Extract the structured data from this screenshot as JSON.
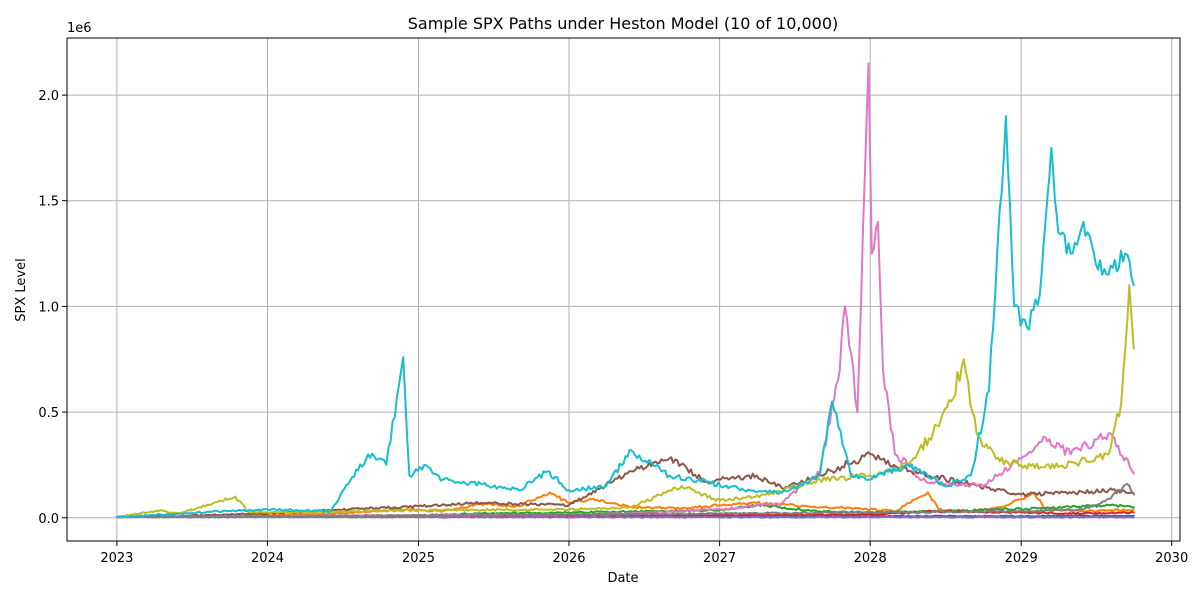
{
  "chart_data": {
    "type": "line",
    "title": "Sample SPX Paths under Heston Model (10 of 10,000)",
    "xlabel": "Date",
    "ylabel": "SPX Level",
    "offset_text": "1e6",
    "x_domain": [
      "2022-09-02",
      "2030-01-21"
    ],
    "ylim": [
      -110000,
      2270000
    ],
    "x_ticks": [
      {
        "label": "2023",
        "date": "2023-01-01"
      },
      {
        "label": "2024",
        "date": "2024-01-01"
      },
      {
        "label": "2025",
        "date": "2025-01-01"
      },
      {
        "label": "2026",
        "date": "2026-01-01"
      },
      {
        "label": "2027",
        "date": "2027-01-01"
      },
      {
        "label": "2028",
        "date": "2028-01-01"
      },
      {
        "label": "2029",
        "date": "2029-01-01"
      },
      {
        "label": "2030",
        "date": "2030-01-01"
      }
    ],
    "y_ticks": [
      {
        "label": "0.0",
        "value": 0
      },
      {
        "label": "0.5",
        "value": 500000
      },
      {
        "label": "1.0",
        "value": 1000000
      },
      {
        "label": "1.5",
        "value": 1500000
      },
      {
        "label": "2.0",
        "value": 2000000
      }
    ],
    "grid": true,
    "series": [
      {
        "color": "#1f77b4",
        "x": [
          "2023-01-01",
          "2024-01-01",
          "2025-01-01",
          "2026-01-01",
          "2027-01-01",
          "2028-01-01",
          "2028-06-01",
          "2029-01-01",
          "2029-06-01",
          "2029-10-01"
        ],
        "y": [
          3800,
          4200,
          5000,
          5600,
          6500,
          7200,
          7800,
          8400,
          9000,
          9500
        ]
      },
      {
        "color": "#ff7f0e",
        "x": [
          "2023-01-01",
          "2023-06-01",
          "2024-01-01",
          "2024-06-01",
          "2024-12-01",
          "2025-03-01",
          "2025-06-01",
          "2025-09-01",
          "2025-11-15",
          "2026-01-01",
          "2026-03-01",
          "2026-06-01",
          "2026-10-01",
          "2027-01-01",
          "2027-04-01",
          "2027-09-01",
          "2027-12-01",
          "2028-03-01",
          "2028-05-20",
          "2028-06-15",
          "2028-09-01",
          "2028-12-01",
          "2029-02-01",
          "2029-03-01",
          "2029-06-01",
          "2029-10-01"
        ],
        "y": [
          3800,
          6000,
          12000,
          18000,
          40000,
          30000,
          65000,
          55000,
          120000,
          70000,
          90000,
          50000,
          45000,
          60000,
          70000,
          50000,
          45000,
          30000,
          120000,
          40000,
          30000,
          60000,
          120000,
          40000,
          30000,
          40000
        ]
      },
      {
        "color": "#2ca02c",
        "x": [
          "2023-01-01",
          "2023-06-01",
          "2024-01-01",
          "2024-06-01",
          "2025-01-01",
          "2025-06-01",
          "2026-01-01",
          "2026-06-01",
          "2027-01-01",
          "2027-04-01",
          "2027-09-01",
          "2028-01-01",
          "2028-06-01",
          "2028-12-01",
          "2029-03-01",
          "2029-08-01",
          "2029-10-01"
        ],
        "y": [
          3800,
          4500,
          6000,
          8000,
          12000,
          20000,
          25000,
          30000,
          35000,
          60000,
          30000,
          25000,
          30000,
          40000,
          45000,
          60000,
          50000
        ]
      },
      {
        "color": "#d62728",
        "x": [
          "2023-01-01",
          "2024-01-01",
          "2025-01-01",
          "2026-01-01",
          "2027-01-01",
          "2028-01-01",
          "2028-06-01",
          "2029-01-01",
          "2029-06-01",
          "2029-10-01"
        ],
        "y": [
          3800,
          5000,
          7000,
          9000,
          12000,
          15000,
          30000,
          25000,
          20000,
          25000
        ]
      },
      {
        "color": "#9467bd",
        "x": [
          "2023-01-01",
          "2024-01-01",
          "2025-01-01",
          "2026-01-01",
          "2027-01-01",
          "2028-01-01",
          "2029-01-01",
          "2029-10-01"
        ],
        "y": [
          3800,
          3400,
          3000,
          2800,
          2500,
          2300,
          2100,
          2000
        ]
      },
      {
        "color": "#8c564b",
        "x": [
          "2023-01-01",
          "2023-06-01",
          "2024-01-01",
          "2024-06-01",
          "2025-01-01",
          "2025-06-01",
          "2026-01-01",
          "2026-06-01",
          "2026-09-01",
          "2026-12-01",
          "2027-04-01",
          "2027-06-01",
          "2027-09-01",
          "2028-01-01",
          "2028-04-01",
          "2028-09-01",
          "2029-01-01",
          "2029-06-01",
          "2029-08-01",
          "2029-10-01"
        ],
        "y": [
          3800,
          8000,
          20000,
          35000,
          55000,
          70000,
          60000,
          220000,
          280000,
          170000,
          200000,
          140000,
          200000,
          300000,
          220000,
          160000,
          110000,
          120000,
          130000,
          115000
        ]
      },
      {
        "color": "#e377c2",
        "x": [
          "2023-01-01",
          "2024-01-01",
          "2025-01-01",
          "2026-01-01",
          "2026-06-01",
          "2027-01-01",
          "2027-06-01",
          "2027-09-01",
          "2027-10-15",
          "2027-11-01",
          "2027-12-01",
          "2027-12-28",
          "2028-01-05",
          "2028-01-20",
          "2028-02-01",
          "2028-02-15",
          "2028-03-01",
          "2028-04-01",
          "2028-05-01",
          "2028-07-01",
          "2028-10-01",
          "2029-01-01",
          "2029-03-01",
          "2029-05-01",
          "2029-08-01",
          "2029-10-01"
        ],
        "y": [
          3800,
          8000,
          12000,
          15000,
          20000,
          40000,
          70000,
          220000,
          650000,
          1000000,
          500000,
          2150000,
          1250000,
          1400000,
          700000,
          520000,
          300000,
          250000,
          180000,
          160000,
          150000,
          280000,
          380000,
          300000,
          400000,
          210000
        ]
      },
      {
        "color": "#7f7f7f",
        "x": [
          "2023-01-01",
          "2024-01-01",
          "2025-01-01",
          "2026-01-01",
          "2027-01-01",
          "2028-01-01",
          "2029-01-01",
          "2029-06-01",
          "2029-08-01",
          "2029-09-15",
          "2029-10-01"
        ],
        "y": [
          3800,
          6000,
          10000,
          15000,
          20000,
          25000,
          30000,
          40000,
          90000,
          160000,
          110000
        ]
      },
      {
        "color": "#bcbd22",
        "x": [
          "2023-01-01",
          "2023-04-15",
          "2023-06-01",
          "2023-10-15",
          "2023-11-15",
          "2024-01-01",
          "2025-01-01",
          "2026-01-01",
          "2026-06-01",
          "2026-10-01",
          "2027-01-01",
          "2027-05-01",
          "2027-09-01",
          "2028-01-01",
          "2028-04-01",
          "2028-06-01",
          "2028-07-15",
          "2028-08-15",
          "2028-09-15",
          "2028-11-01",
          "2029-01-01",
          "2029-04-01",
          "2029-08-01",
          "2029-09-01",
          "2029-09-20",
          "2029-10-01"
        ],
        "y": [
          3800,
          35000,
          20000,
          100000,
          30000,
          25000,
          35000,
          40000,
          50000,
          150000,
          80000,
          110000,
          180000,
          200000,
          250000,
          400000,
          550000,
          750000,
          400000,
          280000,
          250000,
          240000,
          300000,
          550000,
          1100000,
          800000
        ]
      },
      {
        "color": "#17becf",
        "x": [
          "2023-01-01",
          "2023-06-01",
          "2024-01-01",
          "2024-06-01",
          "2024-09-01",
          "2024-10-15",
          "2024-11-25",
          "2024-12-10",
          "2025-01-15",
          "2025-03-01",
          "2025-06-01",
          "2025-09-01",
          "2025-11-10",
          "2026-01-01",
          "2026-04-01",
          "2026-06-01",
          "2026-09-01",
          "2026-12-01",
          "2027-03-01",
          "2027-06-01",
          "2027-09-01",
          "2027-10-01",
          "2027-11-15",
          "2028-01-01",
          "2028-04-01",
          "2028-07-01",
          "2028-09-01",
          "2028-10-15",
          "2028-11-25",
          "2028-12-15",
          "2029-01-15",
          "2029-02-15",
          "2029-03-15",
          "2029-04-01",
          "2029-05-01",
          "2029-06-01",
          "2029-07-01",
          "2029-08-01",
          "2029-09-10",
          "2029-10-01"
        ],
        "y": [
          3800,
          20000,
          40000,
          30000,
          300000,
          250000,
          760000,
          200000,
          250000,
          180000,
          160000,
          130000,
          220000,
          130000,
          150000,
          320000,
          200000,
          170000,
          130000,
          120000,
          200000,
          550000,
          200000,
          180000,
          250000,
          150000,
          200000,
          600000,
          1900000,
          1000000,
          900000,
          1050000,
          1750000,
          1350000,
          1250000,
          1400000,
          1200000,
          1150000,
          1250000,
          1100000
        ]
      }
    ]
  }
}
